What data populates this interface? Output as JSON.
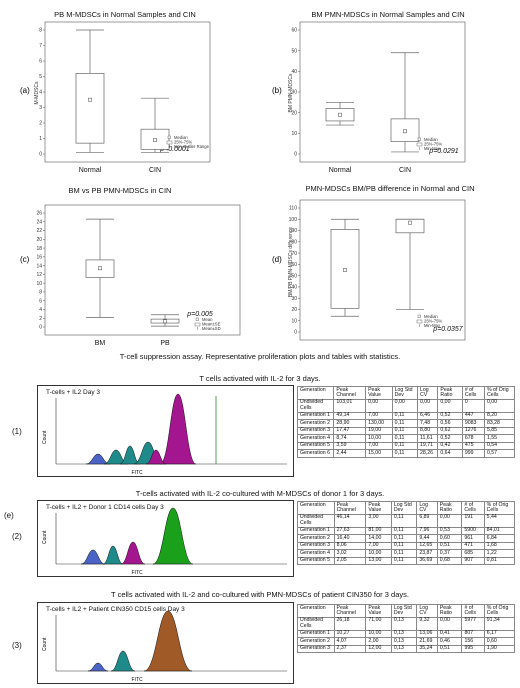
{
  "panels": [
    {
      "label": "(a)",
      "title": "PB M-MDSCs in Normal Samples and CIN",
      "ylabel": "M-MDSCs",
      "yticks": [
        "0",
        "1",
        "2",
        "3",
        "4",
        "5",
        "6",
        "7",
        "8"
      ],
      "categories": [
        "Normal",
        "CIN"
      ],
      "pvalue": "p<0.0001",
      "legend": [
        "Median",
        "25%-75%",
        "Non-Outlier Range"
      ]
    },
    {
      "label": "(b)",
      "title": "BM PMN-MDSCs in Normal Samples and CIN",
      "ylabel": "BM PMN-MDSCs",
      "yticks": [
        "0",
        "10",
        "20",
        "30",
        "40",
        "50",
        "60"
      ],
      "categories": [
        "Normal",
        "CIN"
      ],
      "pvalue": "p=0.0291",
      "legend": [
        "Median",
        "25%-75%",
        "Min-Max"
      ]
    },
    {
      "label": "(c)",
      "title": "BM vs PB PMN-MDSCs in CIN",
      "ylabel": "",
      "yticks": [
        "0",
        "2",
        "4",
        "6",
        "8",
        "10",
        "12",
        "14",
        "16",
        "18",
        "20",
        "22",
        "24",
        "26"
      ],
      "categories": [
        "BM",
        "PB"
      ],
      "pvalue": "p=0.005",
      "legend": [
        "Mean",
        "Mean±SE",
        "Mean±SD"
      ]
    },
    {
      "label": "(d)",
      "title": "PMN-MDSCs BM/PB difference in Normal and CIN",
      "ylabel": "BM/PB PMN-MDSCs difference",
      "yticks": [
        "0",
        "10",
        "20",
        "30",
        "40",
        "50",
        "60",
        "70",
        "80",
        "90",
        "100",
        "110"
      ],
      "categories": [
        "Normal",
        "CIN"
      ],
      "pvalue": "p=0.0357",
      "legend": [
        "Median",
        "25%-75%",
        "Min-Max"
      ]
    }
  ],
  "chart_data": [
    {
      "type": "box",
      "title": "PB M-MDSCs in Normal Samples and CIN",
      "ylabel": "M-MDSCs",
      "ylim": [
        0,
        8
      ],
      "categories": [
        "Normal",
        "CIN"
      ],
      "boxes": [
        {
          "min": 0.1,
          "q1": 0.7,
          "median": 3.5,
          "q3": 5.2,
          "max": 8.0
        },
        {
          "min": 0.1,
          "q1": 0.3,
          "median": 0.9,
          "q3": 1.6,
          "max": 3.6
        }
      ]
    },
    {
      "type": "box",
      "title": "BM PMN-MDSCs in Normal Samples and CIN",
      "ylabel": "BM PMN-MDSCs",
      "ylim": [
        0,
        60
      ],
      "categories": [
        "Normal",
        "CIN"
      ],
      "boxes": [
        {
          "min": 14,
          "q1": 16,
          "median": 19,
          "q3": 22,
          "max": 25
        },
        {
          "min": 1,
          "q1": 6,
          "median": 11,
          "q3": 17,
          "max": 49
        }
      ]
    },
    {
      "type": "box",
      "title": "BM vs PB PMN-MDSCs in CIN",
      "ylabel": "",
      "ylim": [
        0,
        26
      ],
      "categories": [
        "BM",
        "PB"
      ],
      "boxes": [
        {
          "min": 2.2,
          "q1": 11.3,
          "median": 13.4,
          "q3": 15.3,
          "max": 24.6
        },
        {
          "min": 0.2,
          "q1": 0.9,
          "median": 1.3,
          "q3": 1.8,
          "max": 2.8
        }
      ]
    },
    {
      "type": "box",
      "title": "PMN-MDSCs BM/PB difference in Normal and CIN",
      "ylabel": "BM/PB PMN-MDSCs difference",
      "ylim": [
        0,
        110
      ],
      "categories": [
        "Normal",
        "CIN"
      ],
      "boxes": [
        {
          "min": 14,
          "q1": 21,
          "median": 55,
          "q3": 91,
          "max": 100
        },
        {
          "min": 20,
          "q1": 88,
          "median": 97,
          "q3": 100,
          "max": 100
        }
      ]
    }
  ],
  "section_title": "T-cell suppression assay. Representative proliferation plots and tables with statistics.",
  "panel_e_label": "(e)",
  "assays": [
    {
      "label": "(1)",
      "caption": "T cells activated with IL-2 for 3 days.",
      "plot_title": "T-cells + IL2 Day 3",
      "xaxis": "FITC",
      "yaxis": "Count",
      "headers": [
        "Generation",
        "Peak Channel",
        "Peak Value",
        "Log Std Dev",
        "Log CV",
        "Peak Ratio",
        "# of Cells",
        "% of Orig Cells"
      ],
      "rows": [
        [
          "Undivided Cells",
          "103,01",
          "0,00",
          "0,00",
          "0,00",
          "0,00",
          "0",
          "0,00"
        ],
        [
          "Generation 1",
          "49,14",
          "7,00",
          "0,11",
          "6,46",
          "0,52",
          "447",
          "8,20"
        ],
        [
          "Generation 2",
          "28,90",
          "130,00",
          "0,11",
          "7,48",
          "0,56",
          "9083",
          "83,28"
        ],
        [
          "Generation 3",
          "17,47",
          "19,00",
          "0,11",
          "8,80",
          "0,62",
          "1276",
          "5,85"
        ],
        [
          "Generation 4",
          "8,74",
          "10,00",
          "0,11",
          "11,61",
          "0,52",
          "678",
          "1,55"
        ],
        [
          "Generation 5",
          "3,59",
          "7,00",
          "0,11",
          "19,71",
          "0,42",
          "475",
          "0,54"
        ],
        [
          "Generation 6",
          "2,44",
          "15,00",
          "0,11",
          "28,26",
          "0,64",
          "999",
          "0,57"
        ]
      ]
    },
    {
      "label": "(2)",
      "caption": "T-cells activated with IL-2 co-cultured with M-MDSCs of donor 1 for 3 days.",
      "plot_title": "T-cells + IL2 + Donor 1 CD14 cells Day 3",
      "xaxis": "FITC",
      "yaxis": "Count",
      "headers": [
        "Generation",
        "Peak Channel",
        "Peak Value",
        "Log Std Dev",
        "Log CV",
        "Peak Ratio",
        "# of Cells",
        "% of Orig Cells"
      ],
      "rows": [
        [
          "Undivided Cells",
          "46,14",
          "3,00",
          "0,11",
          "6,89",
          "0,00",
          "191",
          "5,44"
        ],
        [
          "Generation 1",
          "27,63",
          "81,00",
          "0,11",
          "7,96",
          "0,53",
          "5900",
          "84,01"
        ],
        [
          "Generation 2",
          "16,40",
          "14,00",
          "0,11",
          "9,44",
          "0,60",
          "961",
          "6,84"
        ],
        [
          "Generation 3",
          "8,06",
          "7,00",
          "0,11",
          "12,65",
          "0,51",
          "471",
          "1,68"
        ],
        [
          "Generation 4",
          "3,02",
          "10,00",
          "0,11",
          "23,87",
          "0,37",
          "685",
          "1,22"
        ],
        [
          "Generation 5",
          "2,05",
          "13,00",
          "0,11",
          "36,69",
          "0,68",
          "907",
          "0,81"
        ]
      ]
    },
    {
      "label": "(3)",
      "caption": "T cells activated with IL-2 and co-cultured with PMN-MDSCs of patient CIN350 for 3 days.",
      "plot_title": "T-cells + IL2 + Patient CIN350 CD15 cells Day 3",
      "xaxis": "FITC",
      "yaxis": "Count",
      "headers": [
        "Generation",
        "Peak Channel",
        "Peak Value",
        "Log Std Dev",
        "Log CV",
        "Peak Ratio",
        "# of Cells",
        "% of Orig Cells"
      ],
      "rows": [
        [
          "Undivided Cells",
          "26,18",
          "71,00",
          "0,13",
          "9,32",
          "0,00",
          "5977",
          "91,34"
        ],
        [
          "Generation 1",
          "10,27",
          "10,00",
          "0,13",
          "13,06",
          "0,41",
          "807",
          "6,17"
        ],
        [
          "Generation 2",
          "4,07",
          "2,00",
          "0,13",
          "21,69",
          "0,46",
          "156",
          "0,60"
        ],
        [
          "Generation 3",
          "2,37",
          "12,00",
          "0,13",
          "35,24",
          "0,51",
          "995",
          "1,90"
        ]
      ]
    }
  ],
  "colors": {
    "box": "#666666",
    "hist_outline": "#111111",
    "hist1_main": "#a4168f",
    "hist2_main": "#1aa01a",
    "hist3_main": "#a05a28",
    "hist_teal": "#1f8a8a",
    "hist_blue": "#4a63c4",
    "marker_green": "#2e8b2e"
  }
}
